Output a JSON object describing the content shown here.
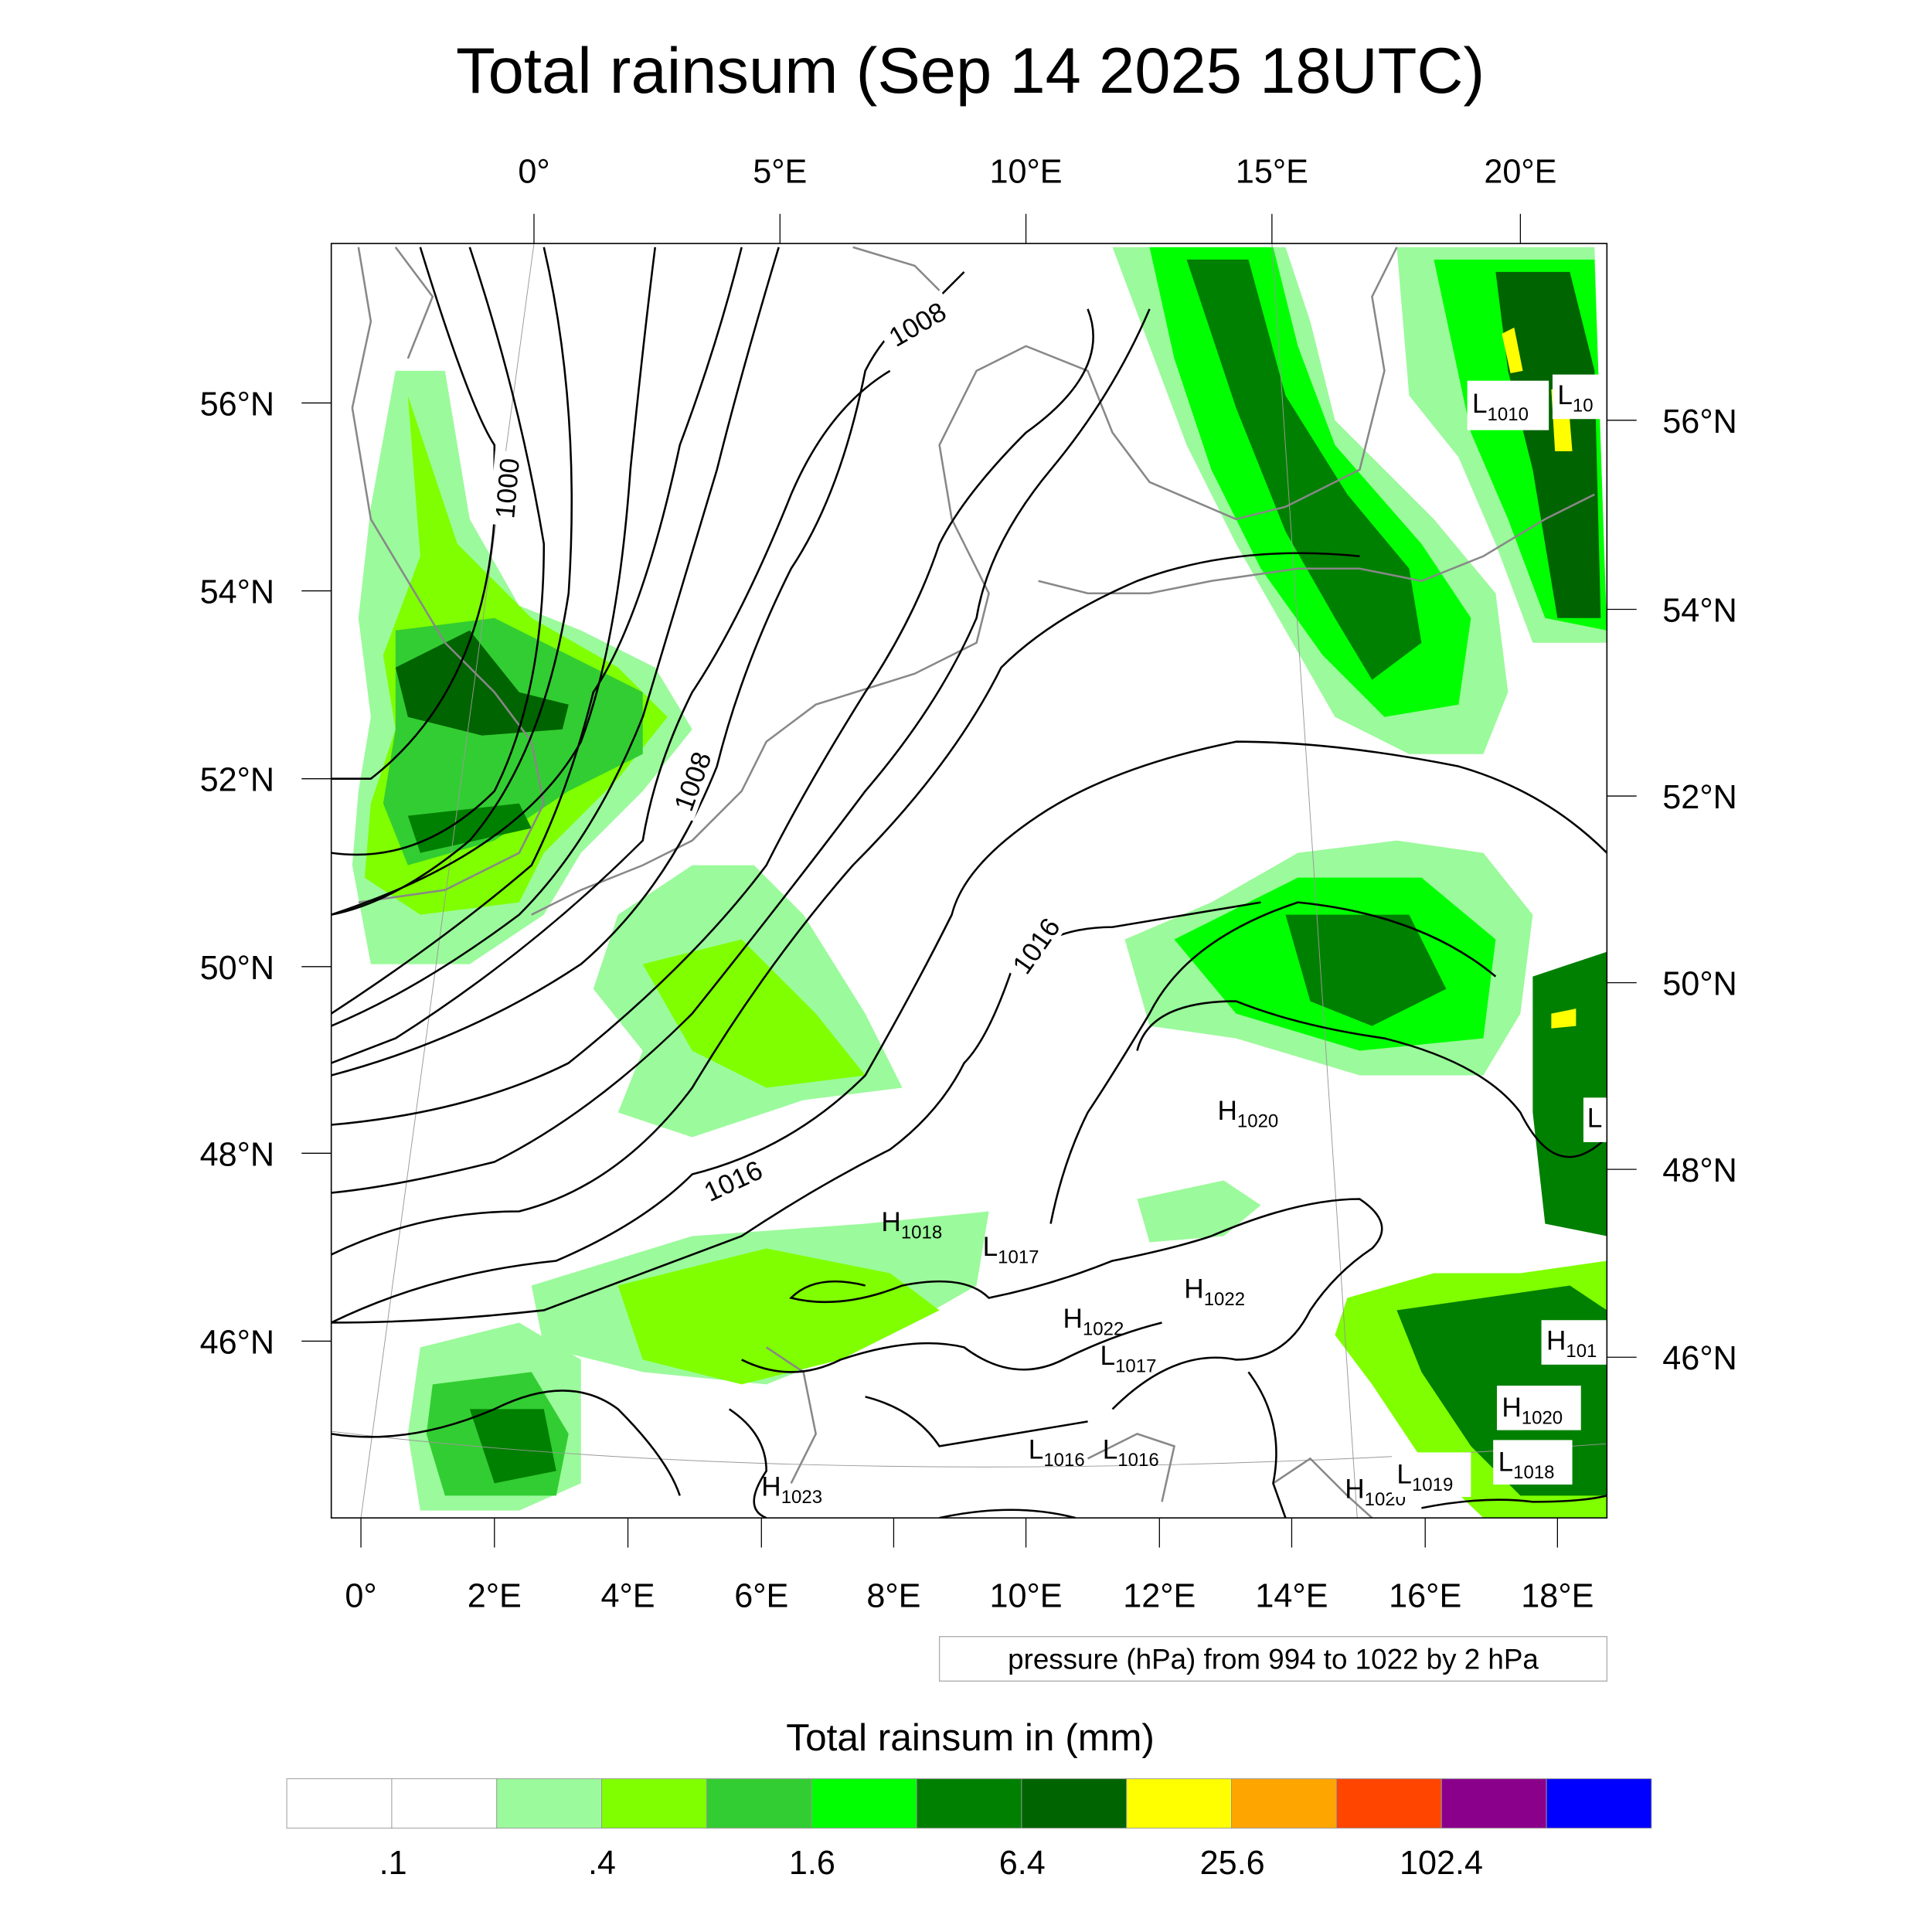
{
  "chart_data": {
    "type": "heatmap",
    "title": "Total rainsum (Sep 14 2025 18UTC)",
    "top_ticks": [
      "0°",
      "5°E",
      "10°E",
      "15°E",
      "20°E"
    ],
    "bottom_ticks": [
      "0°",
      "2°E",
      "4°E",
      "6°E",
      "8°E",
      "10°E",
      "12°E",
      "14°E",
      "16°E",
      "18°E"
    ],
    "left_ticks": [
      "56°N",
      "54°N",
      "52°N",
      "50°N",
      "48°N",
      "46°N"
    ],
    "right_ticks": [
      "56°N",
      "54°N",
      "52°N",
      "50°N",
      "48°N",
      "46°N"
    ],
    "contour_info": "pressure (hPa) from 994 to 1022 by 2 hPa",
    "contour_range": [
      994,
      1022
    ],
    "contour_interval": 2,
    "contour_labels": [
      "1008",
      "1000",
      "1008",
      "1016",
      "1016"
    ],
    "pressure_centers": [
      {
        "type": "H",
        "value": "1018"
      },
      {
        "type": "L",
        "value": "1017"
      },
      {
        "type": "H",
        "value": "1022"
      },
      {
        "type": "H",
        "value": "1022"
      },
      {
        "type": "L",
        "value": "1017"
      },
      {
        "type": "H",
        "value": "1020"
      },
      {
        "type": "L",
        "value": "1016"
      },
      {
        "type": "L",
        "value": "1016"
      },
      {
        "type": "H",
        "value": "1023"
      },
      {
        "type": "H",
        "value": "1020"
      },
      {
        "type": "L",
        "value": "1019"
      },
      {
        "type": "L",
        "value": "1018"
      },
      {
        "type": "H",
        "value": "1020"
      },
      {
        "type": "H",
        "value": "101"
      },
      {
        "type": "L",
        "value": "1010"
      },
      {
        "type": "L",
        "value": "10"
      },
      {
        "type": "L",
        "value": ""
      }
    ],
    "colorbar": {
      "title": "Total rainsum in (mm)",
      "labels": [
        ".1",
        ".4",
        "1.6",
        "6.4",
        "25.6",
        "102.4"
      ],
      "colors": [
        "#ffffff",
        "#ffffff",
        "#9bfa9b",
        "#7fff00",
        "#32cd32",
        "#00ff00",
        "#008000",
        "#006400",
        "#ffff00",
        "#ffa500",
        "#ff4500",
        "#8b008b",
        "#0000ff"
      ]
    }
  }
}
